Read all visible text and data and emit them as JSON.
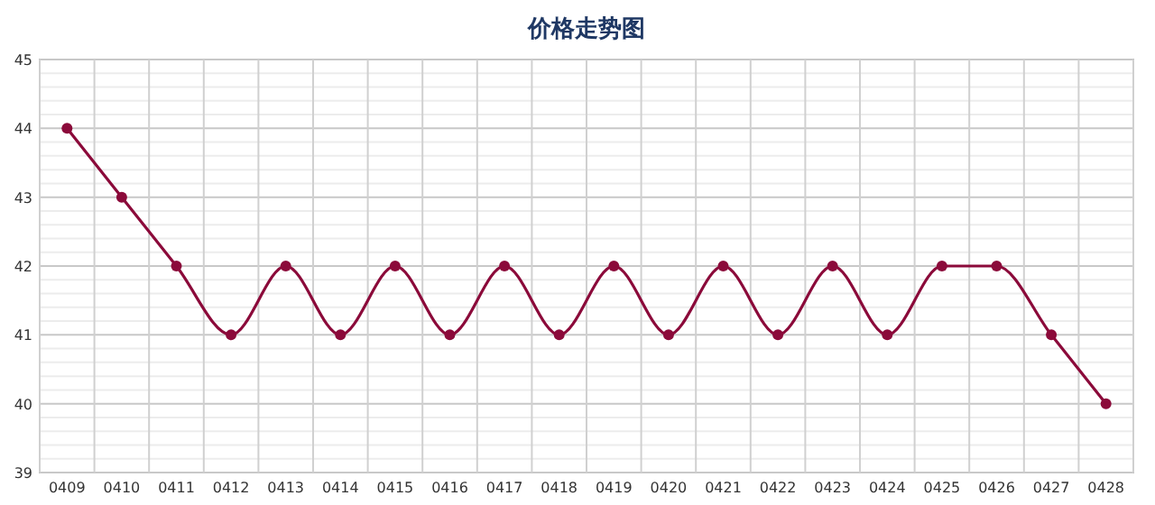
{
  "chart_data": {
    "type": "line",
    "title": "价格走势图",
    "categories": [
      "0409",
      "0410",
      "0411",
      "0412",
      "0413",
      "0414",
      "0415",
      "0416",
      "0417",
      "0418",
      "0419",
      "0420",
      "0421",
      "0422",
      "0423",
      "0424",
      "0425",
      "0426",
      "0427",
      "0428"
    ],
    "series": [
      {
        "color": "#8b0a3a",
        "values": [
          44,
          43,
          42,
          41,
          42,
          41,
          42,
          41,
          42,
          41,
          42,
          41,
          42,
          41,
          42,
          41,
          42,
          42,
          41,
          40
        ]
      }
    ],
    "ylim": [
      39,
      45
    ],
    "yticks": [
      39,
      40,
      41,
      42,
      43,
      44,
      45
    ],
    "grid": true,
    "marker": "circle",
    "line_style": "solid"
  }
}
